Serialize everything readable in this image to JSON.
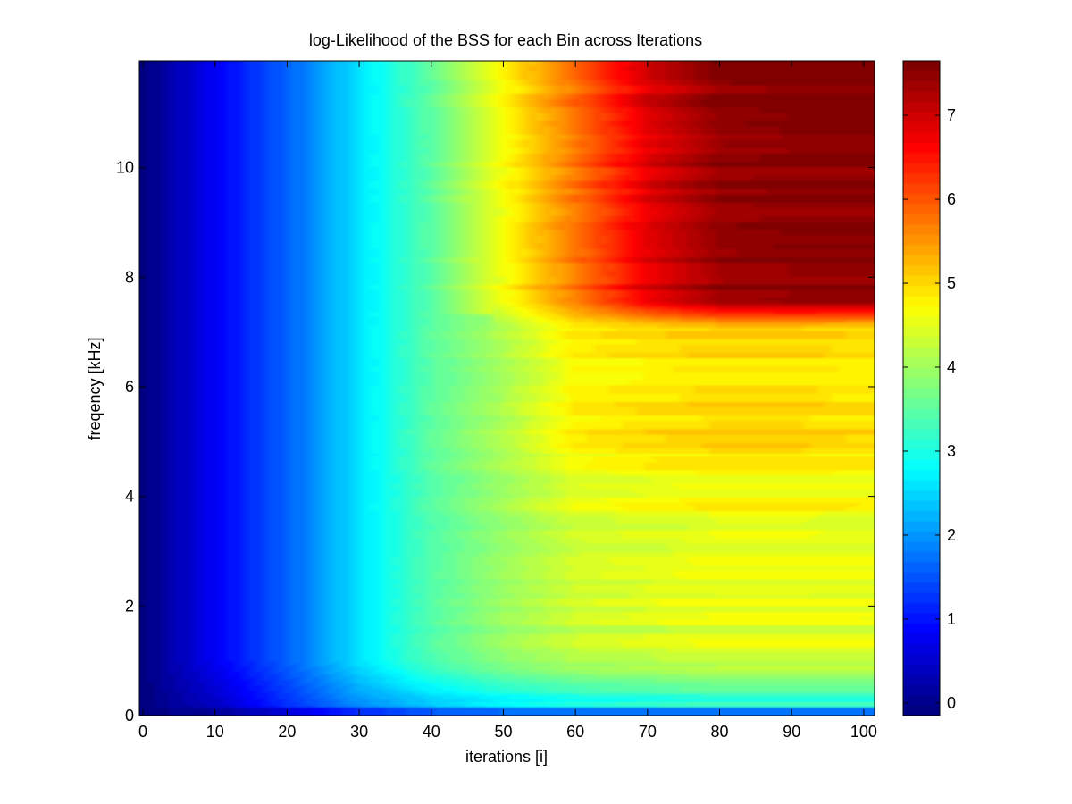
{
  "chart_data": {
    "type": "heatmap",
    "title": "log-Likelihood of the BSS for each Bin across Iterations",
    "xlabel": "iterations [i]",
    "ylabel": "freqency [kHz]",
    "xlim": [
      -0.5,
      101.5
    ],
    "ylim": [
      0,
      11.95
    ],
    "xticks": [
      0,
      10,
      20,
      30,
      40,
      50,
      60,
      70,
      80,
      90,
      100
    ],
    "yticks": [
      0,
      2,
      4,
      6,
      8,
      10
    ],
    "colorbar": {
      "colormap": "jet",
      "clim": [
        -0.15,
        7.65
      ],
      "ticks": [
        0,
        1,
        2,
        3,
        4,
        5,
        6,
        7
      ]
    },
    "grid": false,
    "description_points": {
      "x_samples": [
        0,
        10,
        20,
        30,
        40,
        50,
        60,
        70,
        80,
        90,
        100
      ],
      "value_at_high_freq_10kHz": [
        -0.1,
        0.8,
        1.6,
        2.6,
        3.5,
        4.7,
        5.8,
        6.9,
        7.5,
        7.6,
        7.6
      ],
      "value_at_mid_freq_6kHz": [
        -0.1,
        0.8,
        1.6,
        2.6,
        3.5,
        4.1,
        4.8,
        4.9,
        5.0,
        5.0,
        4.9
      ],
      "value_at_low_freq_2kHz": [
        -0.1,
        0.8,
        1.6,
        2.6,
        3.4,
        3.9,
        4.2,
        4.3,
        4.4,
        4.4,
        4.4
      ],
      "value_at_0.2kHz": [
        -0.1,
        0.4,
        1.2,
        1.9,
        2.3,
        2.6,
        2.8,
        2.9,
        3.0,
        3.0,
        3.0
      ]
    }
  }
}
